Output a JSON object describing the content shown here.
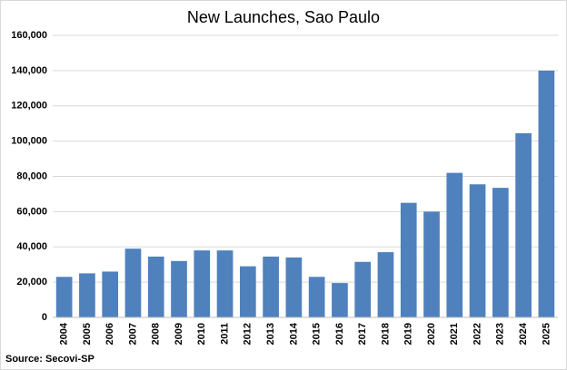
{
  "chart_data": {
    "type": "bar",
    "title": "New Launches, Sao Paulo",
    "source": "Source: Secovi-SP",
    "categories": [
      "2004",
      "2005",
      "2006",
      "2007",
      "2008",
      "2009",
      "2010",
      "2011",
      "2012",
      "2013",
      "2014",
      "2015",
      "2016",
      "2017",
      "2018",
      "2019",
      "2020",
      "2021",
      "2022",
      "2023",
      "2024",
      "2025"
    ],
    "values": [
      23000,
      25000,
      26000,
      39000,
      34500,
      32000,
      38000,
      38000,
      29000,
      34500,
      34000,
      23000,
      19500,
      31500,
      37000,
      65000,
      60000,
      82000,
      75500,
      73500,
      104500,
      140000
    ],
    "color": "#4f81bd",
    "ylim": [
      0,
      160000
    ],
    "yticks": [
      0,
      {
        "value": 20000,
        "label": "20,000"
      },
      {
        "value": 40000,
        "label": "40,000"
      },
      {
        "value": 60000,
        "label": "60,000"
      },
      {
        "value": 80000,
        "label": "80,000"
      },
      {
        "value": 100000,
        "label": "100,000"
      },
      {
        "value": 120000,
        "label": "120,000"
      },
      {
        "value": 140000,
        "label": "140,000"
      },
      {
        "value": 160000,
        "label": "160,000"
      }
    ],
    "grid": true
  }
}
